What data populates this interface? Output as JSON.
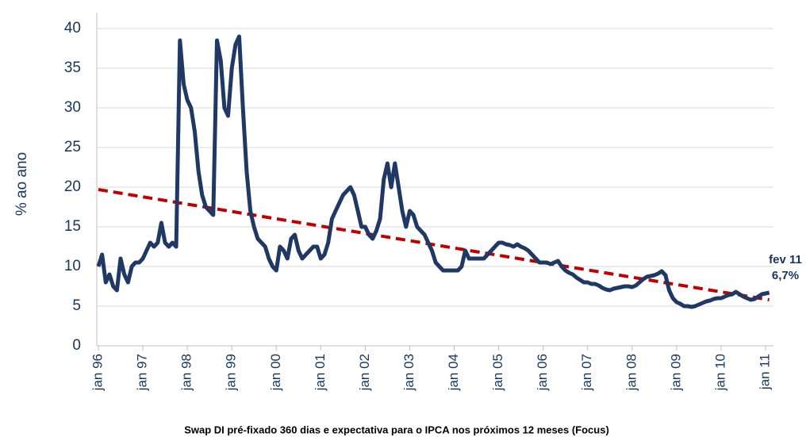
{
  "chart_data": {
    "type": "line",
    "title": "Swap DI pré-fixado 360 dias e expectativa para o IPCA nos próximos 12 meses (Focus)",
    "ylabel": "% ao ano",
    "annotations": [
      "fev 11",
      "6,7%"
    ],
    "categories": [
      "jan 96",
      null,
      null,
      null,
      null,
      null,
      null,
      null,
      null,
      null,
      null,
      null,
      "jan 97",
      null,
      null,
      null,
      null,
      null,
      null,
      null,
      null,
      null,
      null,
      null,
      "jan 98",
      null,
      null,
      null,
      null,
      null,
      null,
      null,
      null,
      null,
      null,
      null,
      "jan 99",
      null,
      null,
      null,
      null,
      null,
      null,
      null,
      null,
      null,
      null,
      null,
      "jan 00",
      null,
      null,
      null,
      null,
      null,
      null,
      null,
      null,
      null,
      null,
      null,
      "jan 01",
      null,
      null,
      null,
      null,
      null,
      null,
      null,
      null,
      null,
      null,
      null,
      "jan 02",
      null,
      null,
      null,
      null,
      null,
      null,
      null,
      null,
      null,
      null,
      null,
      "jan 03",
      null,
      null,
      null,
      null,
      null,
      null,
      null,
      null,
      null,
      null,
      null,
      "jan 04",
      null,
      null,
      null,
      null,
      null,
      null,
      null,
      null,
      null,
      null,
      null,
      "jan 05",
      null,
      null,
      null,
      null,
      null,
      null,
      null,
      null,
      null,
      null,
      null,
      "jan 06",
      null,
      null,
      null,
      null,
      null,
      null,
      null,
      null,
      null,
      null,
      null,
      "jan 07",
      null,
      null,
      null,
      null,
      null,
      null,
      null,
      null,
      null,
      null,
      null,
      "jan 08",
      null,
      null,
      null,
      null,
      null,
      null,
      null,
      null,
      null,
      null,
      null,
      "jan 09",
      null,
      null,
      null,
      null,
      null,
      null,
      null,
      null,
      null,
      null,
      null,
      "jan 10",
      null,
      null,
      null,
      null,
      null,
      null,
      null,
      null,
      null,
      null,
      null,
      "jan 11",
      null
    ],
    "series": [
      {
        "color": "#1f3864",
        "values": [
          10,
          11.5,
          8,
          9,
          7.5,
          7,
          11,
          9,
          8,
          10,
          10.5,
          10.5,
          11,
          12,
          13,
          12.5,
          13,
          15.5,
          13,
          12.5,
          13,
          12.5,
          38.5,
          33,
          31,
          30,
          27,
          22,
          19,
          17.5,
          17,
          16.5,
          38.5,
          36,
          30,
          29,
          35,
          38,
          39,
          30,
          22,
          17,
          15,
          13.5,
          13,
          12.5,
          11,
          10,
          9.5,
          12.5,
          12,
          11,
          13.5,
          14,
          12,
          11,
          11.5,
          12,
          12.5,
          12.5,
          11,
          11.5,
          13,
          16,
          17,
          18,
          19,
          19.5,
          20,
          19,
          17,
          15,
          15,
          14,
          13.5,
          14.5,
          16,
          21,
          23,
          20,
          23,
          20,
          17,
          15,
          17,
          16.5,
          15,
          14.5,
          14,
          13,
          12,
          10.5,
          10,
          9.5,
          9.5,
          9.5,
          9.5,
          9.5,
          10,
          12,
          11,
          11,
          11,
          11,
          11,
          11.5,
          12,
          12.5,
          13,
          13,
          12.8,
          12.7,
          12.5,
          12.8,
          12.5,
          12.3,
          12,
          11.5,
          11,
          10.5,
          10.5,
          10.5,
          10.3,
          10.5,
          10.7,
          10,
          9.5,
          9.2,
          9,
          8.6,
          8.3,
          8,
          8,
          7.8,
          7.8,
          7.6,
          7.3,
          7.1,
          7,
          7.2,
          7.3,
          7.4,
          7.5,
          7.5,
          7.4,
          7.6,
          8,
          8.4,
          8.7,
          8.8,
          8.9,
          9.1,
          9.4,
          8.9,
          7,
          6,
          5.5,
          5.3,
          5,
          5,
          4.9,
          5,
          5.2,
          5.4,
          5.6,
          5.7,
          5.9,
          6,
          6,
          6.2,
          6.4,
          6.5,
          6.8,
          6.5,
          6.2,
          6,
          5.8,
          5.9,
          6.2,
          6.5,
          6.6,
          6.7
        ]
      }
    ],
    "trend": {
      "color": "#c00000",
      "values": [
        19.7,
        5.8
      ]
    },
    "ylim": [
      0,
      40
    ],
    "yticks": [
      0,
      5,
      10,
      15,
      20,
      25,
      30,
      35,
      40
    ],
    "grid": true
  }
}
